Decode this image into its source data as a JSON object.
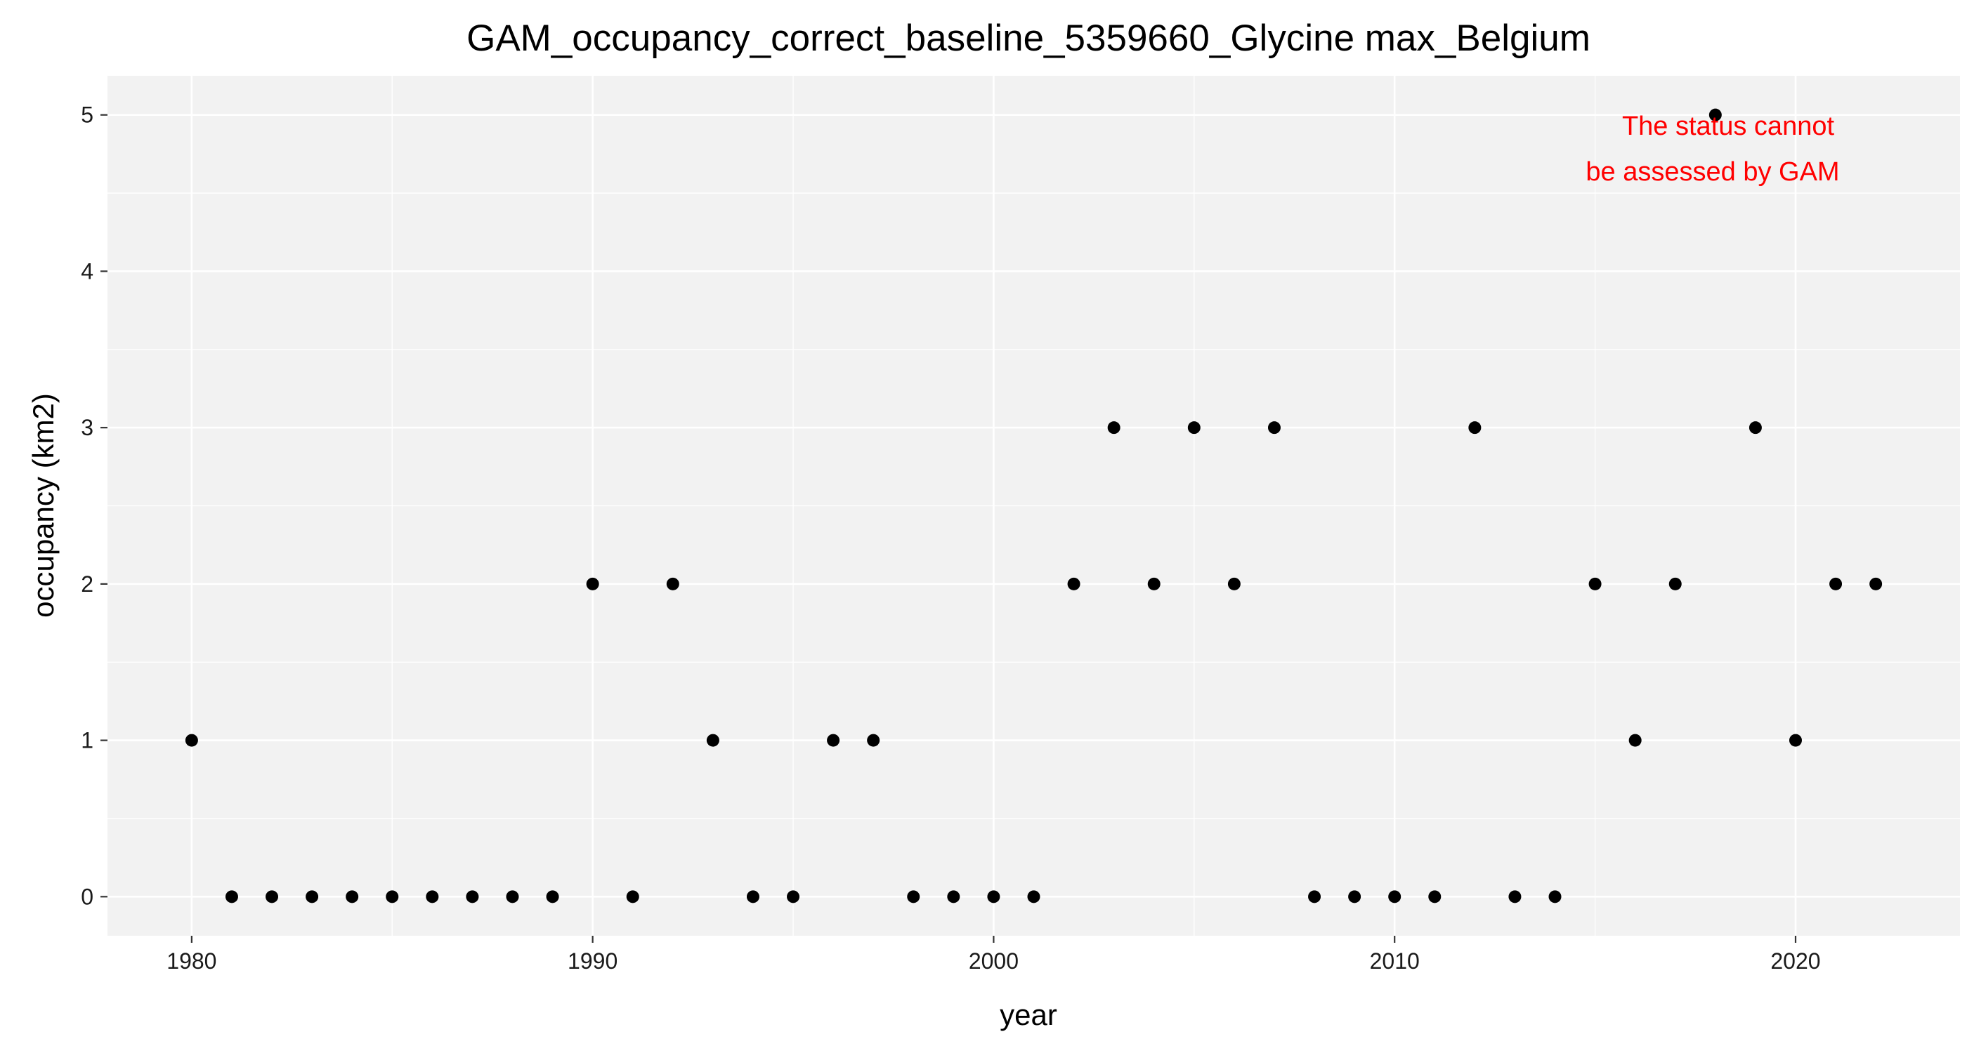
{
  "chart_data": {
    "type": "scatter",
    "title": "GAM_occupancy_correct_baseline_5359660_Glycine max_Belgium",
    "xlabel": "year",
    "ylabel": "occupancy (km2)",
    "xlim": [
      1977.9,
      2024.1
    ],
    "ylim": [
      -0.25,
      5.25
    ],
    "x_ticks": [
      1980,
      1990,
      2000,
      2010,
      2020
    ],
    "y_ticks": [
      0,
      1,
      2,
      3,
      4,
      5
    ],
    "grid": true,
    "background_color": "#f2f2f2",
    "grid_color": "#ffffff",
    "point_color": "#000000",
    "annotation_color": "#ff0000",
    "annotation": [
      "The status cannot",
      "be assessed by GAM"
    ],
    "points": [
      {
        "x": 1980,
        "y": 1
      },
      {
        "x": 1981,
        "y": 0
      },
      {
        "x": 1982,
        "y": 0
      },
      {
        "x": 1983,
        "y": 0
      },
      {
        "x": 1984,
        "y": 0
      },
      {
        "x": 1985,
        "y": 0
      },
      {
        "x": 1986,
        "y": 0
      },
      {
        "x": 1987,
        "y": 0
      },
      {
        "x": 1988,
        "y": 0
      },
      {
        "x": 1989,
        "y": 0
      },
      {
        "x": 1990,
        "y": 2
      },
      {
        "x": 1991,
        "y": 0
      },
      {
        "x": 1992,
        "y": 2
      },
      {
        "x": 1993,
        "y": 1
      },
      {
        "x": 1994,
        "y": 0
      },
      {
        "x": 1995,
        "y": 0
      },
      {
        "x": 1996,
        "y": 1
      },
      {
        "x": 1997,
        "y": 1
      },
      {
        "x": 1998,
        "y": 0
      },
      {
        "x": 1999,
        "y": 0
      },
      {
        "x": 2000,
        "y": 0
      },
      {
        "x": 2001,
        "y": 0
      },
      {
        "x": 2002,
        "y": 2
      },
      {
        "x": 2003,
        "y": 3
      },
      {
        "x": 2004,
        "y": 2
      },
      {
        "x": 2005,
        "y": 3
      },
      {
        "x": 2006,
        "y": 2
      },
      {
        "x": 2007,
        "y": 3
      },
      {
        "x": 2008,
        "y": 0
      },
      {
        "x": 2009,
        "y": 0
      },
      {
        "x": 2010,
        "y": 0
      },
      {
        "x": 2011,
        "y": 0
      },
      {
        "x": 2012,
        "y": 3
      },
      {
        "x": 2013,
        "y": 0
      },
      {
        "x": 2014,
        "y": 0
      },
      {
        "x": 2015,
        "y": 2
      },
      {
        "x": 2016,
        "y": 1
      },
      {
        "x": 2017,
        "y": 2
      },
      {
        "x": 2018,
        "y": 5
      },
      {
        "x": 2019,
        "y": 3
      },
      {
        "x": 2020,
        "y": 1
      },
      {
        "x": 2021,
        "y": 2
      },
      {
        "x": 2022,
        "y": 2
      }
    ]
  }
}
